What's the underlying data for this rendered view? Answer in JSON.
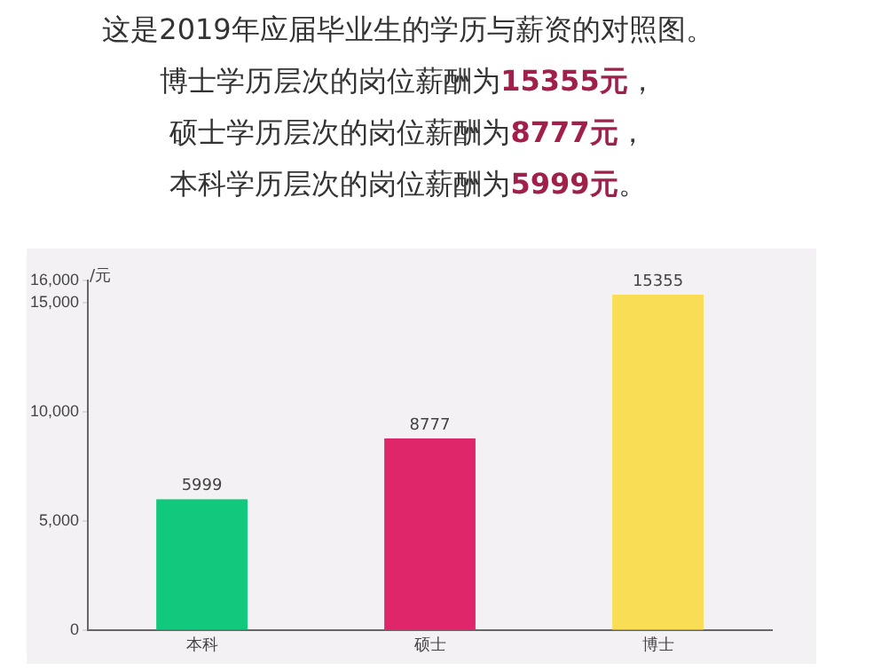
{
  "chart_data": {
    "type": "bar",
    "title": "这是2019年应届毕业生的学历与薪资的对照图。",
    "annotations": [
      "博士学历层次的岗位薪酬为15355元，",
      "硕士学历层次的岗位薪酬为8777元，",
      "本科学历层次的岗位薪酬为5999元。"
    ],
    "ylabel": "/元",
    "categories": [
      "本科",
      "硕士",
      "博士"
    ],
    "values": [
      5999,
      8777,
      15355
    ],
    "colors": [
      "#10c97d",
      "#e0266a",
      "#f9dd55"
    ],
    "ylim": [
      0,
      16000
    ],
    "yticks": [
      {
        "value": 0,
        "label": "0"
      },
      {
        "value": 5000,
        "label": "5,000"
      },
      {
        "value": 10000,
        "label": "10,000"
      },
      {
        "value": 15000,
        "label": "15,000"
      },
      {
        "value": 16000,
        "label": "16,000"
      }
    ],
    "grid": false,
    "legend": false,
    "data_labels": true
  }
}
